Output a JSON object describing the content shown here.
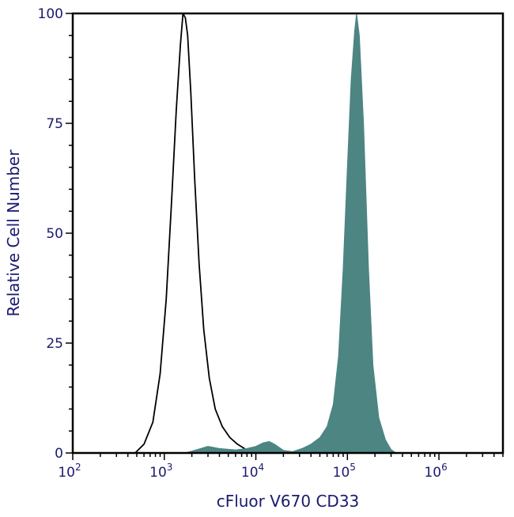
{
  "chart_data": {
    "type": "area",
    "xlabel": "cFluor V670 CD33",
    "ylabel": "Relative Cell Number",
    "x_scale": "log",
    "xlim": [
      100,
      5000000
    ],
    "ylim": [
      0,
      100
    ],
    "y_ticks": [
      0,
      25,
      50,
      75,
      100
    ],
    "x_ticks": [
      {
        "base": "10",
        "exp": "2"
      },
      {
        "base": "10",
        "exp": "3"
      },
      {
        "base": "10",
        "exp": "4"
      },
      {
        "base": "10",
        "exp": "5"
      },
      {
        "base": "10",
        "exp": "6"
      }
    ],
    "grid": false,
    "series": [
      {
        "style": "outline",
        "color": "#000000",
        "points": [
          [
            480,
            0
          ],
          [
            600,
            2
          ],
          [
            750,
            7
          ],
          [
            900,
            18
          ],
          [
            1050,
            35
          ],
          [
            1200,
            57
          ],
          [
            1350,
            78
          ],
          [
            1500,
            93
          ],
          [
            1600,
            100
          ],
          [
            1700,
            99
          ],
          [
            1800,
            95
          ],
          [
            1950,
            82
          ],
          [
            2150,
            62
          ],
          [
            2400,
            43
          ],
          [
            2700,
            28
          ],
          [
            3100,
            17
          ],
          [
            3600,
            10
          ],
          [
            4300,
            6
          ],
          [
            5200,
            3.5
          ],
          [
            6300,
            2
          ],
          [
            7500,
            1
          ],
          [
            8500,
            0
          ]
        ]
      },
      {
        "style": "filled",
        "color": "#4d8583",
        "points": [
          [
            1700,
            0
          ],
          [
            2300,
            0.8
          ],
          [
            3000,
            1.5
          ],
          [
            4000,
            1
          ],
          [
            6000,
            0.7
          ],
          [
            8000,
            1
          ],
          [
            10000,
            1.5
          ],
          [
            12000,
            2.3
          ],
          [
            14000,
            2.6
          ],
          [
            16000,
            2
          ],
          [
            20000,
            0.6
          ],
          [
            25000,
            0.3
          ],
          [
            32000,
            1
          ],
          [
            40000,
            2
          ],
          [
            50000,
            3.5
          ],
          [
            60000,
            6
          ],
          [
            70000,
            11
          ],
          [
            80000,
            22
          ],
          [
            90000,
            42
          ],
          [
            100000,
            65
          ],
          [
            110000,
            85
          ],
          [
            120000,
            96
          ],
          [
            126000,
            100
          ],
          [
            135000,
            95
          ],
          [
            150000,
            75
          ],
          [
            170000,
            42
          ],
          [
            190000,
            20
          ],
          [
            220000,
            8
          ],
          [
            260000,
            3
          ],
          [
            300000,
            0.8
          ],
          [
            340000,
            0
          ]
        ]
      }
    ]
  }
}
